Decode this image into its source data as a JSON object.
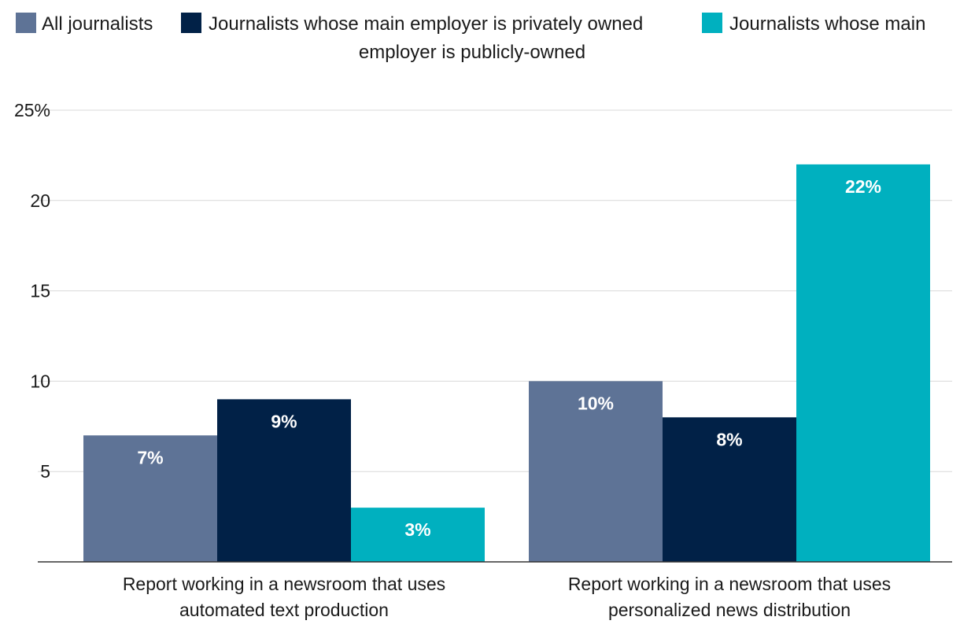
{
  "chart_data": {
    "type": "bar",
    "categories": [
      [
        "Report working in a newsroom that uses",
        "automated text production"
      ],
      [
        "Report working in a newsroom that uses",
        "personalized news distribution"
      ]
    ],
    "series": [
      {
        "name": "All journalists",
        "color": "#5e7396",
        "values": [
          7,
          10
        ],
        "labels": [
          "7%",
          "10%"
        ]
      },
      {
        "name": "Journalists whose main employer is privately owned",
        "color": "#012147",
        "values": [
          9,
          8
        ],
        "labels": [
          "9%",
          "8%"
        ]
      },
      {
        "name": "Journalists whose main employer is publicly-owned",
        "color": "#00b0bf",
        "values": [
          3,
          22
        ],
        "labels": [
          "3%",
          "22%"
        ]
      }
    ],
    "legend": {
      "placement": "top-center",
      "wrapped_tail": "employer is publicly-owned",
      "third_label_first_line": "Journalists whose main"
    },
    "yticks": [
      {
        "value": 5,
        "label": "5"
      },
      {
        "value": 10,
        "label": "10"
      },
      {
        "value": 15,
        "label": "15"
      },
      {
        "value": 20,
        "label": "20"
      },
      {
        "value": 25,
        "label": "25%"
      }
    ],
    "ylim": [
      0,
      25
    ],
    "grid": true
  }
}
